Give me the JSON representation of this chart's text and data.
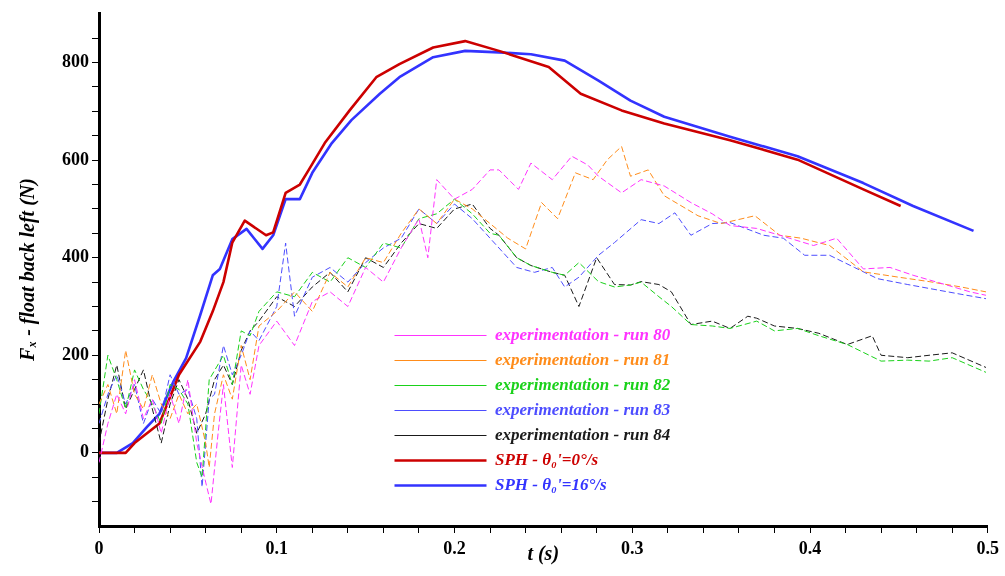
{
  "chart_data": {
    "type": "line",
    "xlabel": "t (s)",
    "ylabel": "Fₓ - float back left (N)",
    "xlim": [
      0,
      0.5
    ],
    "ylim": [
      -150,
      900
    ],
    "xticks": [
      0,
      {
        "value": 0.02,
        "label": null
      },
      {
        "value": 0.04,
        "label": null
      },
      {
        "value": 0.06,
        "label": null
      },
      {
        "value": 0.08,
        "label": null
      },
      0.1,
      {
        "value": 0.12,
        "label": null
      },
      {
        "value": 0.14,
        "label": null
      },
      {
        "value": 0.16,
        "label": null
      },
      {
        "value": 0.18,
        "label": null
      },
      0.2,
      {
        "value": 0.22,
        "label": null
      },
      {
        "value": 0.24,
        "label": null
      },
      {
        "value": 0.26,
        "label": null
      },
      {
        "value": 0.28,
        "label": null
      },
      0.3,
      {
        "value": 0.32,
        "label": null
      },
      {
        "value": 0.34,
        "label": null
      },
      {
        "value": 0.36,
        "label": null
      },
      {
        "value": 0.38,
        "label": null
      },
      0.4,
      {
        "value": 0.42,
        "label": null
      },
      {
        "value": 0.44,
        "label": null
      },
      {
        "value": 0.46,
        "label": null
      },
      {
        "value": 0.48,
        "label": null
      },
      0.5
    ],
    "yticks": [
      {
        "value": -100,
        "label": null
      },
      {
        "value": -50,
        "label": null
      },
      0,
      {
        "value": 50,
        "label": null
      },
      {
        "value": 100,
        "label": null
      },
      {
        "value": 150,
        "label": null
      },
      200,
      {
        "value": 250,
        "label": null
      },
      {
        "value": 300,
        "label": null
      },
      {
        "value": 350,
        "label": null
      },
      400,
      {
        "value": 450,
        "label": null
      },
      {
        "value": 500,
        "label": null
      },
      {
        "value": 550,
        "label": null
      },
      600,
      {
        "value": 650,
        "label": null
      },
      {
        "value": 700,
        "label": null
      },
      {
        "value": 750,
        "label": null
      },
      800,
      {
        "value": 850,
        "label": null
      }
    ],
    "grid": false,
    "legend": "bottom",
    "marker": "none",
    "series": [
      {
        "name": "experimentation - run 80",
        "color": "#ff33ff",
        "line_style": "dashed",
        "x": [
          0,
          0.005,
          0.01,
          0.015,
          0.02,
          0.025,
          0.03,
          0.035,
          0.04,
          0.045,
          0.05,
          0.055,
          0.06,
          0.063,
          0.067,
          0.07,
          0.075,
          0.08,
          0.085,
          0.09,
          0.1,
          0.11,
          0.12,
          0.13,
          0.14,
          0.15,
          0.16,
          0.17,
          0.18,
          0.185,
          0.19,
          0.2,
          0.21,
          0.22,
          0.225,
          0.236,
          0.243,
          0.255,
          0.266,
          0.275,
          0.281,
          0.294,
          0.305,
          0.318,
          0.333,
          0.345,
          0.355,
          0.37,
          0.383,
          0.402,
          0.415,
          0.43,
          0.445,
          0.458,
          0.477,
          0.49,
          0.499
        ],
        "values": [
          -20,
          60,
          120,
          80,
          150,
          70,
          110,
          40,
          120,
          60,
          150,
          20,
          -60,
          -105,
          40,
          140,
          -30,
          180,
          120,
          220,
          270,
          220,
          310,
          330,
          300,
          380,
          350,
          420,
          480,
          400,
          560,
          520,
          540,
          580,
          580,
          540,
          594,
          560,
          608,
          590,
          567,
          533,
          560,
          547,
          513,
          490,
          466,
          460,
          446,
          425,
          440,
          377,
          380,
          364,
          344,
          330,
          323
        ]
      },
      {
        "name": "experimentation - run 81",
        "color": "#ff8c1a",
        "line_style": "dashed",
        "x": [
          0,
          0.005,
          0.01,
          0.015,
          0.02,
          0.025,
          0.03,
          0.035,
          0.04,
          0.045,
          0.05,
          0.055,
          0.06,
          0.062,
          0.065,
          0.07,
          0.075,
          0.08,
          0.085,
          0.09,
          0.1,
          0.11,
          0.12,
          0.13,
          0.14,
          0.15,
          0.16,
          0.17,
          0.18,
          0.19,
          0.2,
          0.21,
          0.22,
          0.23,
          0.24,
          0.249,
          0.258,
          0.268,
          0.278,
          0.286,
          0.294,
          0.299,
          0.309,
          0.318,
          0.337,
          0.35,
          0.369,
          0.383,
          0.395,
          0.411,
          0.43,
          0.45,
          0.467,
          0.485,
          0.499
        ],
        "values": [
          100,
          140,
          80,
          210,
          120,
          90,
          160,
          100,
          70,
          120,
          80,
          100,
          20,
          -30,
          80,
          160,
          110,
          220,
          150,
          260,
          290,
          330,
          290,
          370,
          340,
          400,
          390,
          450,
          500,
          470,
          520,
          500,
          470,
          440,
          418,
          513,
          480,
          574,
          560,
          601,
          628,
          567,
          580,
          527,
          486,
          470,
          486,
          446,
          440,
          425,
          371,
          360,
          351,
          340,
          330
        ]
      },
      {
        "name": "experimentation - run 82",
        "color": "#1ad11a",
        "line_style": "dashed",
        "x": [
          0,
          0.005,
          0.01,
          0.015,
          0.02,
          0.025,
          0.03,
          0.035,
          0.04,
          0.045,
          0.05,
          0.055,
          0.058,
          0.062,
          0.07,
          0.075,
          0.08,
          0.085,
          0.09,
          0.1,
          0.11,
          0.12,
          0.13,
          0.14,
          0.15,
          0.16,
          0.17,
          0.18,
          0.19,
          0.2,
          0.21,
          0.22,
          0.225,
          0.235,
          0.243,
          0.255,
          0.262,
          0.27,
          0.281,
          0.29,
          0.299,
          0.305,
          0.315,
          0.322,
          0.333,
          0.345,
          0.355,
          0.37,
          0.38,
          0.393,
          0.405,
          0.421,
          0.44,
          0.455,
          0.467,
          0.48,
          0.499
        ],
        "values": [
          80,
          200,
          150,
          90,
          170,
          130,
          100,
          60,
          140,
          130,
          100,
          -20,
          -50,
          150,
          200,
          140,
          250,
          240,
          290,
          330,
          320,
          370,
          350,
          400,
          380,
          430,
          420,
          480,
          490,
          520,
          490,
          450,
          446,
          400,
          384,
          370,
          364,
          390,
          351,
          340,
          344,
          350,
          320,
          300,
          263,
          260,
          255,
          270,
          250,
          255,
          240,
          222,
          188,
          190,
          188,
          195,
          165
        ]
      },
      {
        "name": "experimentation - run 83",
        "color": "#4d4dff",
        "line_style": "dashed",
        "x": [
          0,
          0.005,
          0.01,
          0.015,
          0.02,
          0.025,
          0.03,
          0.035,
          0.04,
          0.045,
          0.05,
          0.055,
          0.058,
          0.062,
          0.065,
          0.07,
          0.075,
          0.08,
          0.085,
          0.09,
          0.1,
          0.105,
          0.11,
          0.12,
          0.13,
          0.14,
          0.15,
          0.16,
          0.17,
          0.18,
          0.19,
          0.2,
          0.21,
          0.22,
          0.235,
          0.245,
          0.255,
          0.262,
          0.27,
          0.281,
          0.29,
          0.305,
          0.315,
          0.324,
          0.333,
          0.345,
          0.355,
          0.374,
          0.385,
          0.397,
          0.411,
          0.425,
          0.438,
          0.455,
          0.467,
          0.485,
          0.499
        ],
        "values": [
          60,
          120,
          160,
          100,
          140,
          60,
          110,
          80,
          160,
          120,
          130,
          70,
          -70,
          110,
          120,
          220,
          160,
          200,
          250,
          230,
          300,
          430,
          280,
          360,
          380,
          350,
          390,
          420,
          440,
          500,
          470,
          510,
          480,
          440,
          380,
          370,
          380,
          340,
          360,
          405,
          431,
          478,
          470,
          492,
          446,
          470,
          472,
          446,
          440,
          405,
          405,
          380,
          357,
          345,
          337,
          325,
          316
        ]
      },
      {
        "name": "experimentation - run 84",
        "color": "#1a1a1a",
        "line_style": "dashed",
        "x": [
          0,
          0.005,
          0.01,
          0.015,
          0.02,
          0.025,
          0.03,
          0.035,
          0.04,
          0.045,
          0.05,
          0.055,
          0.06,
          0.065,
          0.07,
          0.075,
          0.08,
          0.085,
          0.09,
          0.1,
          0.11,
          0.12,
          0.13,
          0.14,
          0.15,
          0.16,
          0.17,
          0.18,
          0.19,
          0.2,
          0.21,
          0.22,
          0.225,
          0.235,
          0.243,
          0.255,
          0.262,
          0.27,
          0.28,
          0.29,
          0.299,
          0.305,
          0.315,
          0.322,
          0.333,
          0.345,
          0.355,
          0.365,
          0.37,
          0.38,
          0.393,
          0.405,
          0.421,
          0.435,
          0.44,
          0.455,
          0.467,
          0.48,
          0.499
        ],
        "values": [
          20,
          110,
          180,
          90,
          130,
          170,
          90,
          20,
          100,
          150,
          110,
          40,
          80,
          150,
          180,
          140,
          210,
          250,
          270,
          320,
          300,
          340,
          370,
          330,
          400,
          380,
          430,
          470,
          460,
          500,
          510,
          460,
          446,
          400,
          384,
          370,
          364,
          300,
          400,
          345,
          344,
          351,
          345,
          330,
          263,
          270,
          255,
          280,
          276,
          260,
          255,
          245,
          222,
          240,
          200,
          195,
          200,
          205,
          175
        ]
      },
      {
        "name": "SPH - θ₀'=0°/s",
        "color": "#cc0000",
        "line_style": "solid",
        "x": [
          0,
          0.015,
          0.02,
          0.034,
          0.045,
          0.057,
          0.064,
          0.07,
          0.075,
          0.082,
          0.094,
          0.098,
          0.105,
          0.113,
          0.118,
          0.127,
          0.141,
          0.156,
          0.169,
          0.188,
          0.206,
          0.225,
          0.253,
          0.271,
          0.294,
          0.318,
          0.355,
          0.393,
          0.43,
          0.451
        ],
        "values": [
          0,
          0,
          20,
          60,
          160,
          228,
          290,
          350,
          431,
          476,
          446,
          452,
          533,
          550,
          580,
          635,
          702,
          770,
          797,
          831,
          844,
          824,
          791,
          736,
          702,
          675,
          641,
          601,
          540,
          506
        ]
      },
      {
        "name": "SPH - θ₀'=16°/s",
        "color": "#3333ff",
        "line_style": "solid",
        "x": [
          0,
          0.01,
          0.019,
          0.027,
          0.034,
          0.042,
          0.049,
          0.057,
          0.064,
          0.068,
          0.075,
          0.083,
          0.092,
          0.098,
          0.105,
          0.113,
          0.12,
          0.131,
          0.142,
          0.158,
          0.169,
          0.188,
          0.206,
          0.225,
          0.243,
          0.262,
          0.281,
          0.299,
          0.318,
          0.355,
          0.393,
          0.43,
          0.458,
          0.492
        ],
        "values": [
          0,
          0,
          20,
          53,
          80,
          147,
          194,
          283,
          364,
          377,
          438,
          459,
          418,
          446,
          520,
          520,
          574,
          635,
          682,
          736,
          770,
          811,
          824,
          821,
          817,
          804,
          763,
          722,
          689,
          648,
          608,
          553,
          506,
          455
        ]
      }
    ]
  }
}
